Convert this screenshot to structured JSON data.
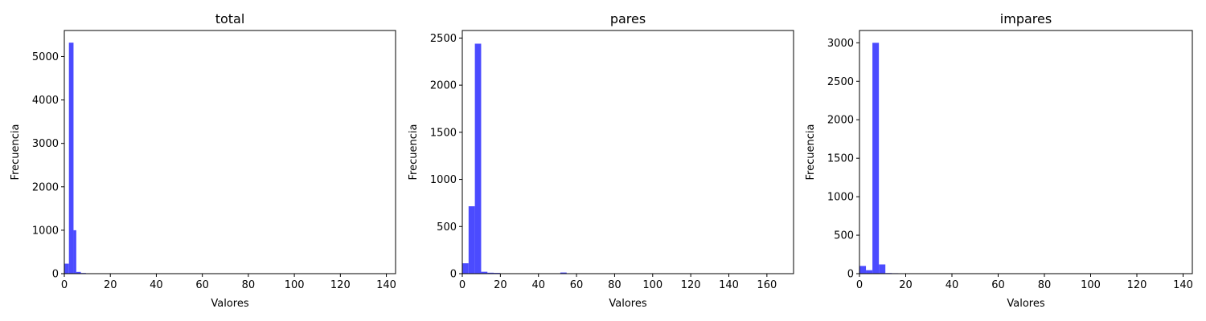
{
  "chart_data": [
    {
      "type": "bar",
      "title": "total",
      "xlabel": "Valores",
      "ylabel": "Frecuencia",
      "xlim": [
        0,
        144
      ],
      "ylim": [
        0,
        5600
      ],
      "xticks": [
        0,
        20,
        40,
        60,
        80,
        100,
        120,
        140
      ],
      "yticks": [
        0,
        1000,
        2000,
        3000,
        4000,
        5000
      ],
      "grid": false,
      "bar_color": "#4b4bff",
      "bins": [
        {
          "x0": 0,
          "x1": 2.0,
          "value": 230
        },
        {
          "x0": 2.0,
          "x1": 4.0,
          "value": 5320
        },
        {
          "x0": 4.0,
          "x1": 5.2,
          "value": 1000
        },
        {
          "x0": 5.2,
          "x1": 7.2,
          "value": 40
        },
        {
          "x0": 7.2,
          "x1": 9.4,
          "value": 15
        },
        {
          "x0": 9.4,
          "x1": 12.0,
          "value": 5
        }
      ]
    },
    {
      "type": "bar",
      "title": "pares",
      "xlabel": "Valores",
      "ylabel": "Frecuencia",
      "xlim": [
        0,
        174
      ],
      "ylim": [
        0,
        2580
      ],
      "xticks": [
        0,
        20,
        40,
        60,
        80,
        100,
        120,
        140,
        160
      ],
      "yticks": [
        0,
        500,
        1000,
        1500,
        2000,
        2500
      ],
      "grid": false,
      "bar_color": "#4b4bff",
      "bins": [
        {
          "x0": 0,
          "x1": 3.3,
          "value": 110
        },
        {
          "x0": 3.3,
          "x1": 6.6,
          "value": 715
        },
        {
          "x0": 6.6,
          "x1": 9.9,
          "value": 2440
        },
        {
          "x0": 9.9,
          "x1": 13.2,
          "value": 20
        },
        {
          "x0": 13.2,
          "x1": 16.5,
          "value": 10
        },
        {
          "x0": 16.5,
          "x1": 19.8,
          "value": 8
        },
        {
          "x0": 19.8,
          "x1": 23.1,
          "value": 4
        },
        {
          "x0": 51.5,
          "x1": 54.8,
          "value": 12
        }
      ]
    },
    {
      "type": "bar",
      "title": "impares",
      "xlabel": "Valores",
      "ylabel": "Frecuencia",
      "xlim": [
        0,
        144
      ],
      "ylim": [
        0,
        3160
      ],
      "xticks": [
        0,
        20,
        40,
        60,
        80,
        100,
        120,
        140
      ],
      "yticks": [
        0,
        500,
        1000,
        1500,
        2000,
        2500,
        3000
      ],
      "grid": false,
      "bar_color": "#4b4bff",
      "bins": [
        {
          "x0": 0,
          "x1": 2.8,
          "value": 100
        },
        {
          "x0": 2.8,
          "x1": 5.6,
          "value": 45
        },
        {
          "x0": 5.6,
          "x1": 8.4,
          "value": 3000
        },
        {
          "x0": 8.4,
          "x1": 11.2,
          "value": 120
        },
        {
          "x0": 11.2,
          "x1": 14.0,
          "value": 8
        },
        {
          "x0": 14.0,
          "x1": 16.8,
          "value": 6
        },
        {
          "x0": 16.8,
          "x1": 19.6,
          "value": 4
        }
      ]
    }
  ]
}
